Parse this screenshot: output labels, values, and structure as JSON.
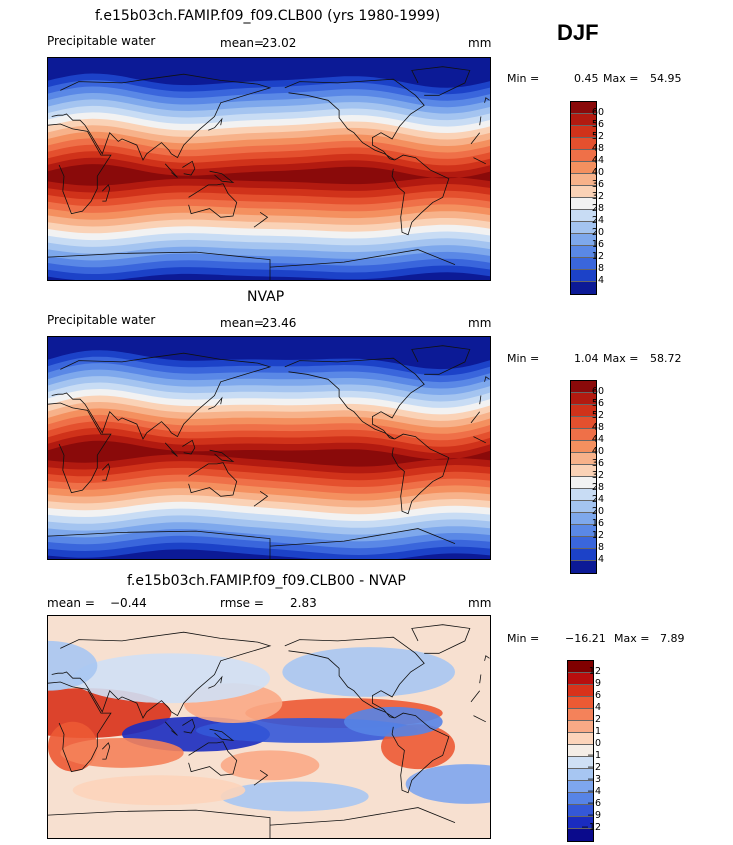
{
  "season": "DJF",
  "panels": [
    {
      "title": "f.e15b03ch.FAMIP.f09_f09.CLB00 (yrs 1980-1999)",
      "field_label": "Precipitable water",
      "stat_label": "mean=",
      "stat_value": "23.02",
      "stat2_label": "",
      "stat2_value": "",
      "units": "mm",
      "min_label": "Min =",
      "min_value": "0.45",
      "max_label": "Max =",
      "max_value": "54.95",
      "kind": "model"
    },
    {
      "title": "NVAP",
      "field_label": "Precipitable water",
      "stat_label": "mean=",
      "stat_value": "23.46",
      "stat2_label": "",
      "stat2_value": "",
      "units": "mm",
      "min_label": "Min =",
      "min_value": "1.04",
      "max_label": "Max =",
      "max_value": "58.72",
      "kind": "obs"
    },
    {
      "title": "f.e15b03ch.FAMIP.f09_f09.CLB00 - NVAP",
      "field_label": "",
      "stat_label": "mean =",
      "stat_value": "−0.44",
      "stat2_label": "rmse =",
      "stat2_value": "2.83",
      "units": "mm",
      "min_label": "Min =",
      "min_value": "−16.21",
      "max_label": "Max =",
      "max_value": "7.89",
      "kind": "diff"
    }
  ],
  "colorbars": {
    "absolute": {
      "ticks": [
        "60",
        "56",
        "52",
        "48",
        "44",
        "40",
        "36",
        "32",
        "28",
        "24",
        "20",
        "16",
        "12",
        "8",
        "4"
      ],
      "colors": [
        "#8a0a0a",
        "#b21a10",
        "#d0321a",
        "#e4502e",
        "#ef7048",
        "#f4905f",
        "#f7b28a",
        "#fad2b6",
        "#f2f2f2",
        "#c8dcf4",
        "#a4c4f0",
        "#7ea8ec",
        "#5a88e6",
        "#3a66dc",
        "#1c42c8",
        "#0c1a96"
      ]
    },
    "difference": {
      "ticks": [
        "12",
        "9",
        "6",
        "4",
        "2",
        "1",
        "0",
        "−1",
        "−2",
        "−3",
        "−4",
        "−6",
        "−9",
        "−12"
      ],
      "colors": [
        "#800000",
        "#b80e0e",
        "#d8321a",
        "#ec5a34",
        "#f4825a",
        "#f9aa86",
        "#fcd4ba",
        "#f4ede6",
        "#cfe0f5",
        "#a7c6f2",
        "#7ea6ee",
        "#5784e6",
        "#3458d8",
        "#1a2cc0",
        "#0a0a8c"
      ]
    }
  }
}
